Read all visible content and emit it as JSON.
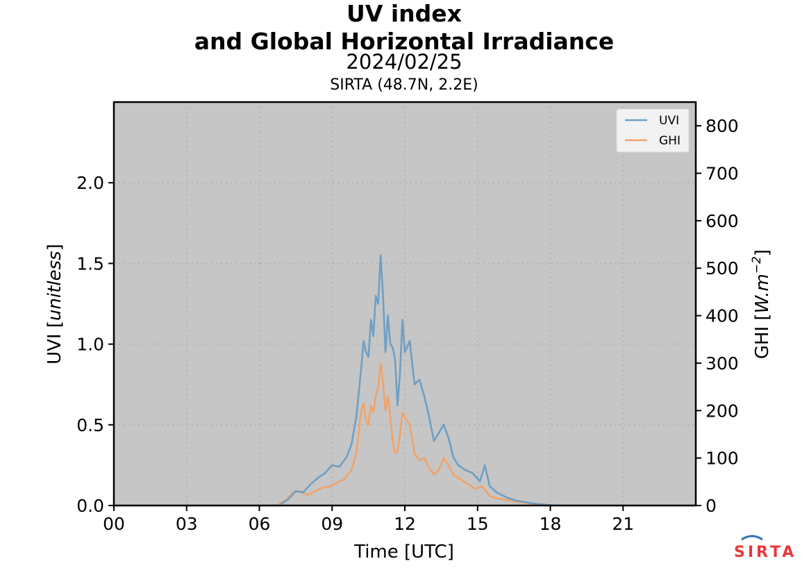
{
  "chart_data": {
    "type": "line",
    "title_line1": "UV index",
    "title_line2": "and Global Horizontal Irradiance",
    "date": "2024/02/25",
    "station": "SIRTA (48.7N, 2.2E)",
    "xlabel": "Time [UTC]",
    "ylabel_left_prefix": "UVI [",
    "ylabel_left_unit": "unitless",
    "ylabel_left_suffix": "]",
    "ylabel_right_prefix": "GHI [",
    "ylabel_right_unit": "W.m",
    "ylabel_right_exp": "−2",
    "ylabel_right_suffix": "]",
    "xlim": [
      0,
      24
    ],
    "ylim_left": [
      0,
      2.5
    ],
    "ylim_right": [
      0,
      850
    ],
    "x_ticks": [
      0,
      3,
      6,
      9,
      12,
      15,
      18,
      21
    ],
    "x_tick_labels": [
      "00",
      "03",
      "06",
      "09",
      "12",
      "15",
      "18",
      "21"
    ],
    "y_left_ticks": [
      0.0,
      0.5,
      1.0,
      1.5,
      2.0
    ],
    "y_left_tick_labels": [
      "0.0",
      "0.5",
      "1.0",
      "1.5",
      "2.0"
    ],
    "y_right_ticks": [
      0,
      100,
      200,
      300,
      400,
      500,
      600,
      700,
      800
    ],
    "y_right_tick_labels": [
      "0",
      "100",
      "200",
      "300",
      "400",
      "500",
      "600",
      "700",
      "800"
    ],
    "grid": true,
    "legend_position": "top-right",
    "series": [
      {
        "name": "UVI",
        "axis": "left",
        "color": "#6f9fc4",
        "x": [
          6.9,
          7.2,
          7.5,
          7.8,
          8.1,
          8.4,
          8.7,
          9.0,
          9.3,
          9.6,
          9.8,
          10.0,
          10.2,
          10.3,
          10.4,
          10.5,
          10.6,
          10.7,
          10.8,
          10.9,
          11.0,
          11.1,
          11.2,
          11.3,
          11.4,
          11.5,
          11.6,
          11.7,
          11.8,
          11.9,
          12.0,
          12.2,
          12.4,
          12.6,
          12.8,
          13.0,
          13.2,
          13.4,
          13.6,
          13.8,
          14.0,
          14.2,
          14.5,
          14.8,
          15.1,
          15.3,
          15.5,
          15.8,
          16.2,
          16.6,
          17.0,
          17.4,
          17.8,
          18.2
        ],
        "y": [
          0.01,
          0.04,
          0.09,
          0.08,
          0.13,
          0.17,
          0.2,
          0.25,
          0.24,
          0.3,
          0.38,
          0.55,
          0.85,
          1.02,
          0.95,
          0.92,
          1.15,
          1.05,
          1.3,
          1.25,
          1.55,
          1.3,
          0.95,
          1.18,
          1.0,
          0.98,
          0.9,
          0.62,
          0.82,
          1.15,
          0.95,
          1.02,
          0.75,
          0.78,
          0.68,
          0.55,
          0.4,
          0.45,
          0.5,
          0.42,
          0.3,
          0.25,
          0.22,
          0.2,
          0.15,
          0.25,
          0.12,
          0.08,
          0.05,
          0.03,
          0.02,
          0.01,
          0.005,
          0.0
        ]
      },
      {
        "name": "GHI",
        "axis": "right",
        "color": "#f0a36a",
        "x": [
          6.8,
          7.1,
          7.4,
          7.7,
          8.0,
          8.3,
          8.6,
          8.9,
          9.2,
          9.5,
          9.8,
          10.0,
          10.2,
          10.3,
          10.4,
          10.5,
          10.6,
          10.7,
          10.8,
          10.9,
          11.0,
          11.1,
          11.2,
          11.3,
          11.4,
          11.5,
          11.6,
          11.7,
          11.8,
          11.9,
          12.0,
          12.2,
          12.4,
          12.6,
          12.8,
          13.0,
          13.2,
          13.4,
          13.6,
          13.8,
          14.0,
          14.3,
          14.6,
          14.9,
          15.2,
          15.5,
          15.8,
          16.2,
          16.6,
          17.0,
          17.4,
          17.8
        ],
        "y": [
          3,
          12,
          28,
          30,
          22,
          30,
          38,
          40,
          48,
          55,
          75,
          110,
          200,
          215,
          180,
          170,
          210,
          195,
          230,
          250,
          300,
          260,
          200,
          230,
          190,
          135,
          110,
          115,
          150,
          195,
          185,
          170,
          110,
          95,
          100,
          80,
          65,
          75,
          100,
          85,
          65,
          55,
          45,
          35,
          40,
          20,
          15,
          12,
          8,
          5,
          2,
          0
        ]
      }
    ],
    "logo_text": "SIRTA"
  }
}
